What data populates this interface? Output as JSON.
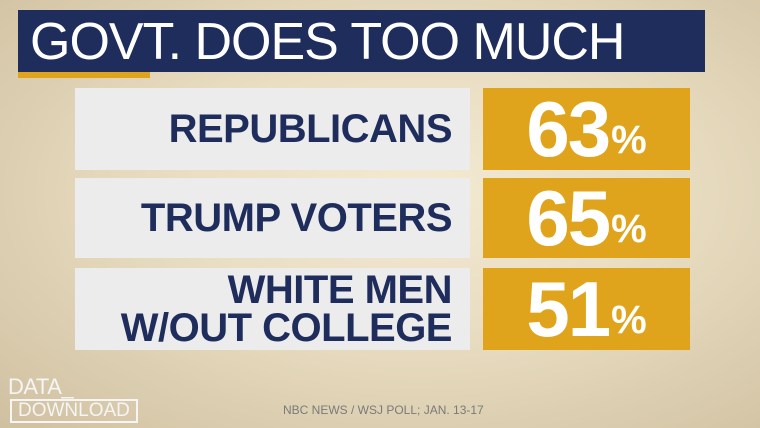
{
  "title": "GOVT. DOES TOO MUCH",
  "rows": [
    {
      "label_lines": [
        "REPUBLICANS"
      ],
      "value": "63%"
    },
    {
      "label_lines": [
        "TRUMP VOTERS"
      ],
      "value": "65%"
    },
    {
      "label_lines": [
        "WHITE MEN",
        "W/OUT COLLEGE"
      ],
      "value": "51%"
    }
  ],
  "logo": [
    "DATA_",
    "DOWNLOAD"
  ],
  "source": "NBC NEWS / WSJ POLL; JAN. 13-17"
}
